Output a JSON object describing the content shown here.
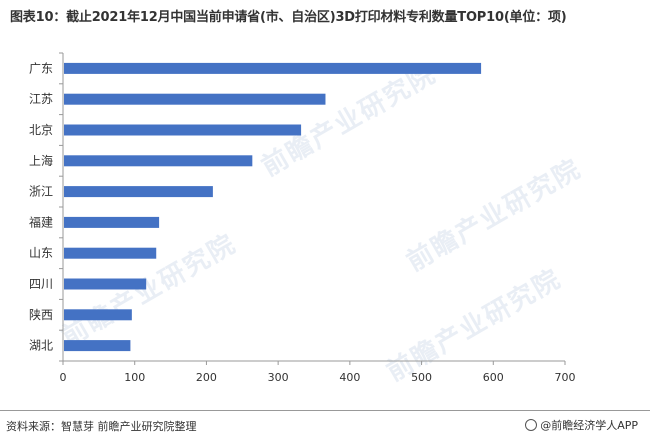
{
  "title": "图表10：截止2021年12月中国当前申请省(市、自治区)3D打印材料专利数量TOP10(单位：项)",
  "source": "资料来源：智慧芽 前瞻产业研究院整理",
  "brand": "@前瞻经济学人APP",
  "watermark": "前瞻产业研究院",
  "colors": {
    "bar": "#4472c4",
    "axis": "#999999"
  },
  "chart_data": {
    "type": "bar",
    "orientation": "horizontal",
    "categories": [
      "广东",
      "江苏",
      "北京",
      "上海",
      "浙江",
      "福建",
      "山东",
      "四川",
      "陕西",
      "湖北"
    ],
    "values": [
      583,
      366,
      332,
      264,
      209,
      134,
      130,
      116,
      96,
      94
    ],
    "xlim": [
      0,
      700
    ],
    "xticks": [
      0,
      100,
      200,
      300,
      400,
      500,
      600,
      700
    ],
    "grid": false
  }
}
